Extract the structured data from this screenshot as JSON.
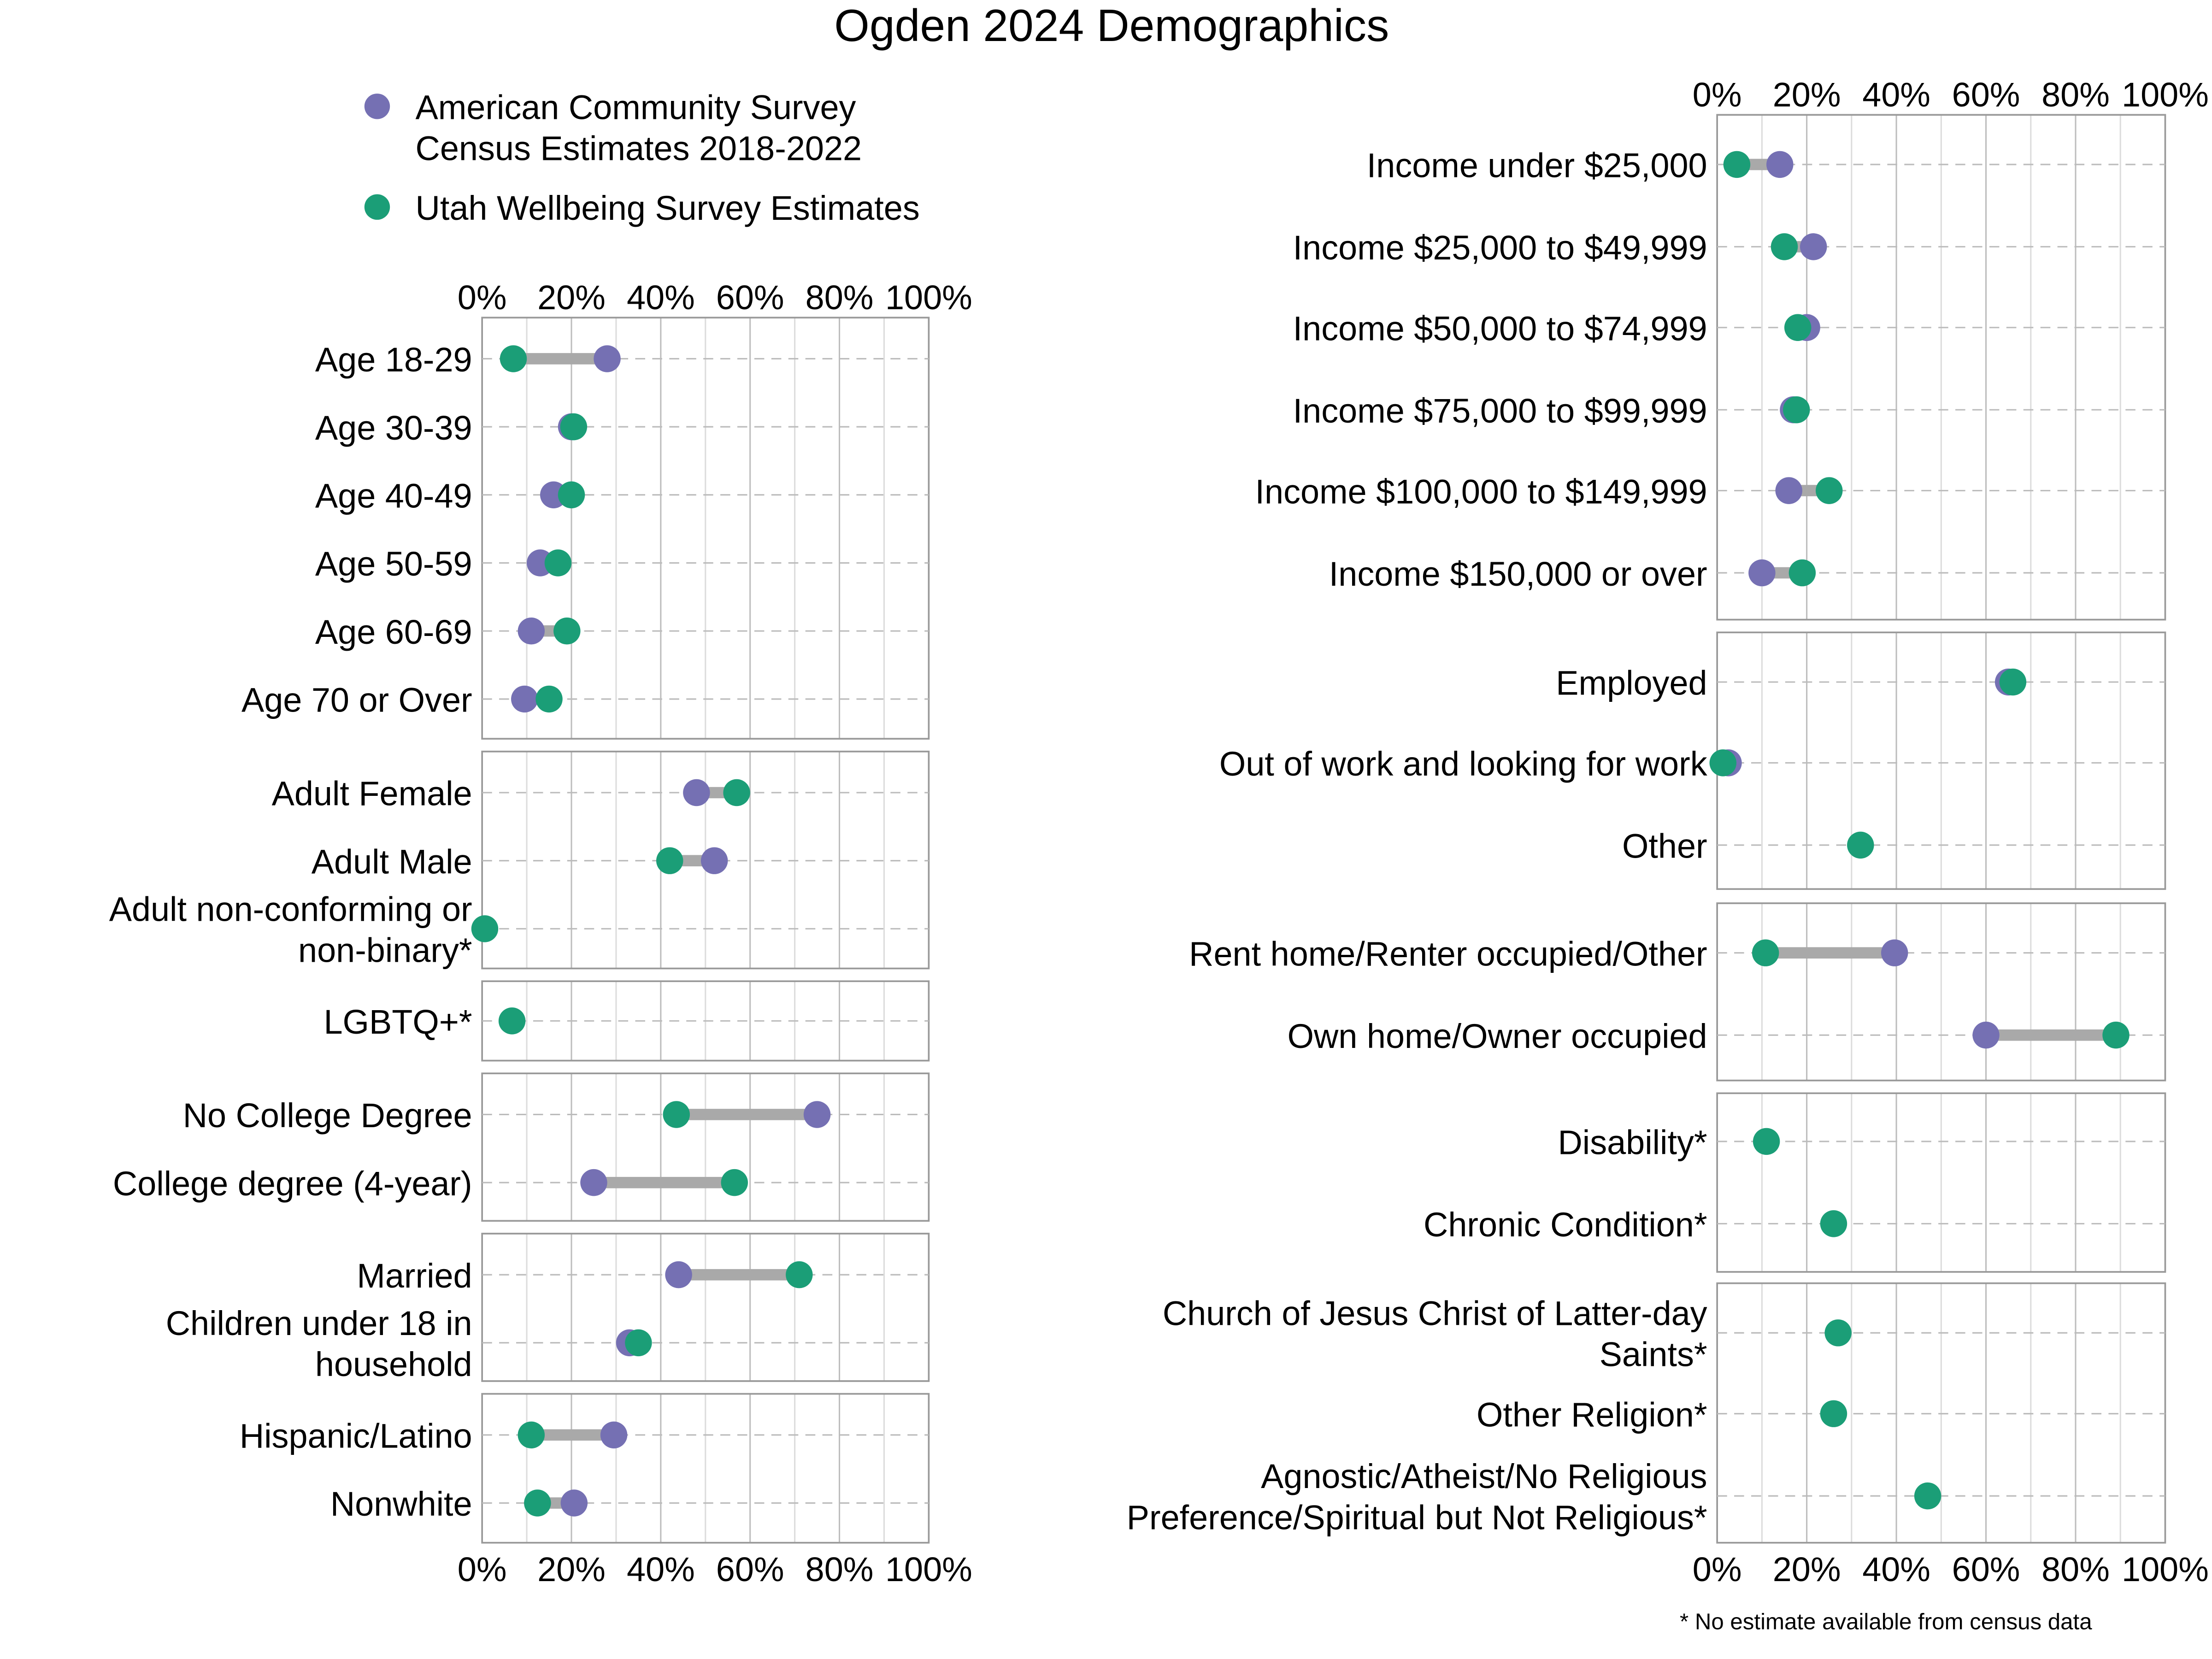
{
  "chart_data": {
    "type": "dumbbell",
    "title": "Ogden 2024 Demographics",
    "footnote": "* No estimate available from census data",
    "xlim": [
      0,
      100
    ],
    "x_ticks": [
      "0%",
      "20%",
      "40%",
      "60%",
      "80%",
      "100%"
    ],
    "grid": true,
    "legend_position": "top-left",
    "series_colors": {
      "acs": "#7570b3",
      "uws": "#1b9e77",
      "connector": "#a9a9a9"
    },
    "legend": [
      {
        "key": "acs",
        "lines": [
          "American Community Survey",
          "Census Estimates 2018-2022"
        ]
      },
      {
        "key": "uws",
        "lines": [
          "Utah Wellbeing Survey Estimates"
        ]
      }
    ],
    "columns": [
      {
        "panels": [
          {
            "rows": [
              {
                "label": [
                  "Age 18-29"
                ],
                "acs": 28,
                "uws": 7
              },
              {
                "label": [
                  "Age 30-39"
                ],
                "acs": 20,
                "uws": 20.5
              },
              {
                "label": [
                  "Age 40-49"
                ],
                "acs": 16,
                "uws": 20
              },
              {
                "label": [
                  "Age 50-59"
                ],
                "acs": 13,
                "uws": 17
              },
              {
                "label": [
                  "Age 60-69"
                ],
                "acs": 11,
                "uws": 19
              },
              {
                "label": [
                  "Age 70 or Over"
                ],
                "acs": 9.5,
                "uws": 15
              }
            ]
          },
          {
            "rows": [
              {
                "label": [
                  "Adult Female"
                ],
                "acs": 48,
                "uws": 57
              },
              {
                "label": [
                  "Adult Male"
                ],
                "acs": 52,
                "uws": 42
              },
              {
                "label": [
                  "Adult non-conforming or",
                  "non-binary*"
                ],
                "acs": null,
                "uws": 0.6
              }
            ]
          },
          {
            "rows": [
              {
                "label": [
                  "LGBTQ+*"
                ],
                "acs": null,
                "uws": 6.7
              }
            ]
          },
          {
            "rows": [
              {
                "label": [
                  "No College Degree"
                ],
                "acs": 75,
                "uws": 43.5
              },
              {
                "label": [
                  "College degree (4-year)"
                ],
                "acs": 25,
                "uws": 56.5
              }
            ]
          },
          {
            "rows": [
              {
                "label": [
                  "Married"
                ],
                "acs": 44,
                "uws": 71
              },
              {
                "label": [
                  "Children under 18 in",
                  "household"
                ],
                "acs": 33,
                "uws": 35
              }
            ]
          },
          {
            "rows": [
              {
                "label": [
                  "Hispanic/Latino"
                ],
                "acs": 29.5,
                "uws": 11
              },
              {
                "label": [
                  "Nonwhite"
                ],
                "acs": 20.6,
                "uws": 12.4
              }
            ]
          }
        ]
      },
      {
        "panels": [
          {
            "rows": [
              {
                "label": [
                  "Income under $25,000"
                ],
                "acs": 14,
                "uws": 4.4
              },
              {
                "label": [
                  "Income $25,000 to $49,999"
                ],
                "acs": 21.5,
                "uws": 15
              },
              {
                "label": [
                  "Income $50,000 to $74,999"
                ],
                "acs": 20,
                "uws": 18
              },
              {
                "label": [
                  "Income $75,000 to $99,999"
                ],
                "acs": 17,
                "uws": 17.7
              },
              {
                "label": [
                  "Income $100,000 to $149,999"
                ],
                "acs": 16,
                "uws": 25
              },
              {
                "label": [
                  "Income $150,000 or over"
                ],
                "acs": 10,
                "uws": 19
              }
            ]
          },
          {
            "rows": [
              {
                "label": [
                  "Employed"
                ],
                "acs": 65,
                "uws": 66
              },
              {
                "label": [
                  "Out of work and looking for work"
                ],
                "acs": 2.5,
                "uws": 1.3
              },
              {
                "label": [
                  "Other"
                ],
                "acs": null,
                "uws": 32
              }
            ]
          },
          {
            "rows": [
              {
                "label": [
                  "Rent home/Renter occupied/Other"
                ],
                "acs": 39.6,
                "uws": 10.8
              },
              {
                "label": [
                  "Own home/Owner occupied"
                ],
                "acs": 60,
                "uws": 89
              }
            ]
          },
          {
            "rows": [
              {
                "label": [
                  "Disability*"
                ],
                "acs": null,
                "uws": 11
              },
              {
                "label": [
                  "Chronic Condition*"
                ],
                "acs": null,
                "uws": 26
              }
            ]
          },
          {
            "rows": [
              {
                "label": [
                  "Church of Jesus Christ of Latter-day",
                  "Saints*"
                ],
                "acs": null,
                "uws": 27
              },
              {
                "label": [
                  "Other Religion*"
                ],
                "acs": null,
                "uws": 26
              },
              {
                "label": [
                  "Agnostic/Atheist/No Religious",
                  "Preference/Spiritual but Not Religious*"
                ],
                "acs": null,
                "uws": 47
              }
            ]
          }
        ]
      }
    ]
  }
}
